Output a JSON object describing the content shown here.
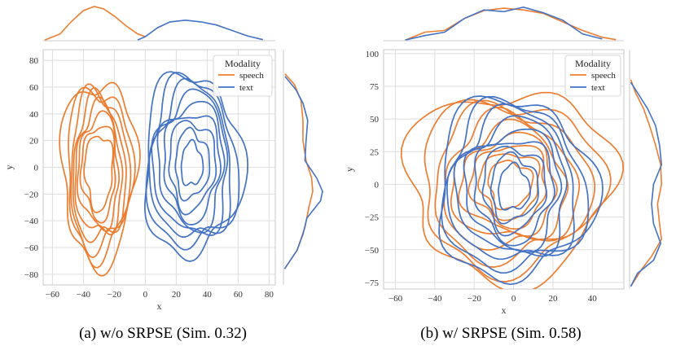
{
  "colors": {
    "speech": "#ED7D31",
    "text": "#4472C4",
    "grid": "#dddddd",
    "spine": "#bbbbbb"
  },
  "chart_data": [
    {
      "type": "kde_contour",
      "title": "",
      "caption": "(a) w/o SRPSE (Sim. 0.32)",
      "xlabel": "x",
      "ylabel": "y",
      "xlim": [
        -66,
        84
      ],
      "ylim": [
        -88,
        88
      ],
      "xticks": [
        -60,
        -40,
        -20,
        0,
        20,
        40,
        60,
        80
      ],
      "yticks": [
        -80,
        -60,
        -40,
        -20,
        0,
        20,
        40,
        60,
        80
      ],
      "xtick_labels": [
        "−60",
        "−40",
        "−20",
        "0",
        "20",
        "40",
        "60",
        "80"
      ],
      "ytick_labels": [
        "−80",
        "−60",
        "−40",
        "−20",
        "0",
        "20",
        "40",
        "60",
        "80"
      ],
      "grid": true,
      "legend": {
        "title": "Modality",
        "placement": "top-right",
        "entries": [
          "speech",
          "text"
        ]
      },
      "series": [
        {
          "name": "speech",
          "color_key": "speech",
          "center": [
            -30,
            -3
          ],
          "levels": [
            [
              24,
              68
            ],
            [
              21,
              62
            ],
            [
              19,
              58
            ],
            [
              17,
              53
            ],
            [
              15,
              48
            ],
            [
              13,
              42
            ],
            [
              11,
              35
            ],
            [
              9,
              28
            ]
          ],
          "marginal_x": [
            [
              -65,
              0.02
            ],
            [
              -55,
              0.2
            ],
            [
              -48,
              0.55
            ],
            [
              -40,
              0.88
            ],
            [
              -33,
              1.0
            ],
            [
              -27,
              0.93
            ],
            [
              -20,
              0.72
            ],
            [
              -12,
              0.42
            ],
            [
              -5,
              0.2
            ],
            [
              0,
              0.12
            ]
          ],
          "marginal_y": [
            [
              -76,
              0.03
            ],
            [
              -62,
              0.35
            ],
            [
              -45,
              0.55
            ],
            [
              -30,
              0.65
            ],
            [
              -18,
              0.75
            ],
            [
              -8,
              0.72
            ],
            [
              5,
              0.58
            ],
            [
              20,
              0.5
            ],
            [
              35,
              0.5
            ],
            [
              50,
              0.45
            ],
            [
              62,
              0.28
            ],
            [
              70,
              0.04
            ]
          ]
        },
        {
          "name": "text",
          "color_key": "text",
          "center": [
            30,
            2
          ],
          "levels": [
            [
              32,
              67
            ],
            [
              29,
              62
            ],
            [
              26,
              57
            ],
            [
              24,
              52
            ],
            [
              21,
              47
            ],
            [
              18,
              40
            ],
            [
              15,
              33
            ],
            [
              11,
              25
            ],
            [
              7,
              16
            ]
          ],
          "marginal_x": [
            [
              -5,
              0.02
            ],
            [
              0,
              0.12
            ],
            [
              8,
              0.38
            ],
            [
              16,
              0.55
            ],
            [
              26,
              0.6
            ],
            [
              36,
              0.55
            ],
            [
              46,
              0.46
            ],
            [
              56,
              0.3
            ],
            [
              66,
              0.14
            ],
            [
              76,
              0.03
            ]
          ],
          "marginal_y": [
            [
              -76,
              0.03
            ],
            [
              -62,
              0.35
            ],
            [
              -50,
              0.5
            ],
            [
              -38,
              0.6
            ],
            [
              -25,
              0.95
            ],
            [
              -18,
              1.0
            ],
            [
              -8,
              0.85
            ],
            [
              5,
              0.55
            ],
            [
              20,
              0.58
            ],
            [
              35,
              0.62
            ],
            [
              48,
              0.5
            ],
            [
              58,
              0.32
            ],
            [
              68,
              0.04
            ]
          ]
        }
      ]
    },
    {
      "type": "kde_contour",
      "title": "",
      "caption": "(b) w/ SRPSE (Sim. 0.58)",
      "xlabel": "x",
      "ylabel": "y",
      "xlim": [
        -66,
        56
      ],
      "ylim": [
        -80,
        103
      ],
      "xticks": [
        -60,
        -40,
        -20,
        0,
        20,
        40
      ],
      "yticks": [
        -75,
        -50,
        -25,
        0,
        25,
        50,
        75,
        100
      ],
      "xtick_labels": [
        "−60",
        "−40",
        "−20",
        "0",
        "20",
        "40"
      ],
      "ytick_labels": [
        "−75",
        "−50",
        "−25",
        "0",
        "25",
        "50",
        "75",
        "100"
      ],
      "grid": true,
      "legend": {
        "title": "Modality",
        "placement": "top-right",
        "entries": [
          "speech",
          "text"
        ]
      },
      "series": [
        {
          "name": "speech",
          "color_key": "speech",
          "center": [
            -2,
            0
          ],
          "levels": [
            [
              52,
              72
            ],
            [
              46,
              64
            ],
            [
              40,
              57
            ],
            [
              34,
              50
            ],
            [
              29,
              43
            ],
            [
              24,
              37
            ],
            [
              19,
              31
            ],
            [
              15,
              25
            ],
            [
              11,
              18
            ]
          ],
          "marginal_x": [
            [
              -55,
              0.02
            ],
            [
              -45,
              0.25
            ],
            [
              -35,
              0.3
            ],
            [
              -25,
              0.65
            ],
            [
              -15,
              0.88
            ],
            [
              -5,
              0.95
            ],
            [
              5,
              0.9
            ],
            [
              15,
              0.8
            ],
            [
              25,
              0.55
            ],
            [
              35,
              0.3
            ],
            [
              45,
              0.1
            ],
            [
              52,
              0.03
            ]
          ],
          "marginal_y": [
            [
              -78,
              0.03
            ],
            [
              -65,
              0.3
            ],
            [
              -55,
              0.55
            ],
            [
              -42,
              0.8
            ],
            [
              -30,
              0.75
            ],
            [
              -15,
              0.7
            ],
            [
              0,
              0.8
            ],
            [
              15,
              0.78
            ],
            [
              30,
              0.65
            ],
            [
              45,
              0.5
            ],
            [
              58,
              0.35
            ],
            [
              70,
              0.15
            ],
            [
              80,
              0.03
            ]
          ]
        },
        {
          "name": "text",
          "color_key": "text",
          "center": [
            0,
            -3
          ],
          "levels": [
            [
              40,
              68
            ],
            [
              36,
              63
            ],
            [
              32,
              57
            ],
            [
              28,
              51
            ],
            [
              24,
              45
            ],
            [
              20,
              39
            ],
            [
              16,
              32
            ],
            [
              12,
              25
            ],
            [
              8,
              17
            ]
          ],
          "marginal_x": [
            [
              -55,
              0.02
            ],
            [
              -45,
              0.15
            ],
            [
              -35,
              0.25
            ],
            [
              -25,
              0.65
            ],
            [
              -15,
              0.9
            ],
            [
              -5,
              0.85
            ],
            [
              5,
              0.98
            ],
            [
              15,
              0.82
            ],
            [
              25,
              0.6
            ],
            [
              35,
              0.2
            ],
            [
              45,
              0.05
            ]
          ],
          "marginal_y": [
            [
              -78,
              0.03
            ],
            [
              -68,
              0.2
            ],
            [
              -58,
              0.6
            ],
            [
              -45,
              0.78
            ],
            [
              -30,
              0.6
            ],
            [
              -15,
              0.55
            ],
            [
              0,
              0.6
            ],
            [
              15,
              0.8
            ],
            [
              30,
              0.75
            ],
            [
              45,
              0.65
            ],
            [
              58,
              0.45
            ],
            [
              70,
              0.2
            ],
            [
              78,
              0.03
            ]
          ]
        }
      ]
    }
  ]
}
